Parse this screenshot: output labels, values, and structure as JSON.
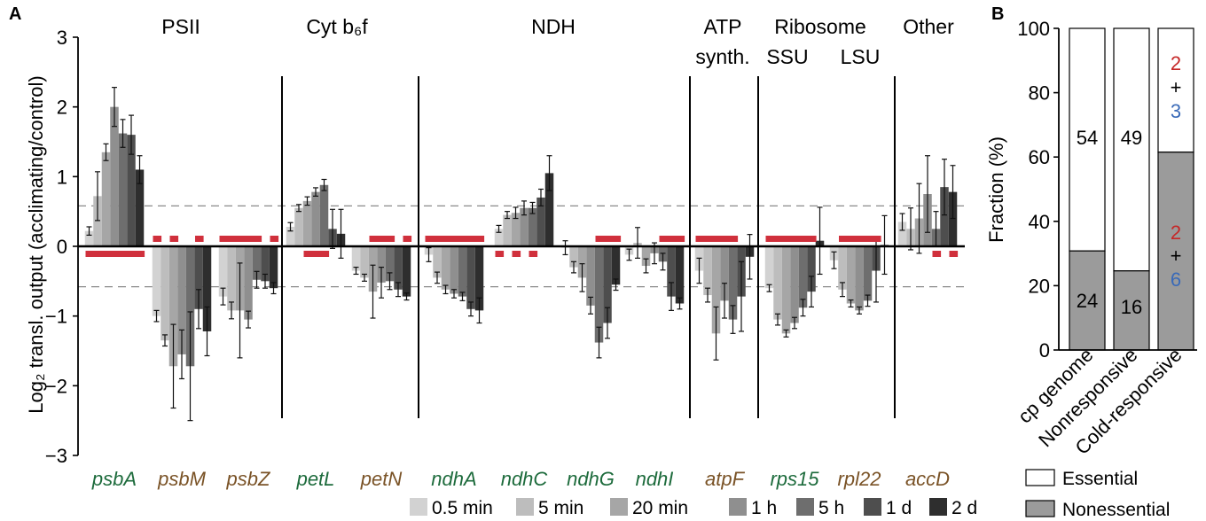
{
  "panel_a": {
    "letter": "A",
    "ylabel": "Log₂ transl. output (acclimating/control)",
    "y_ticks": [
      "3",
      "2",
      "1",
      "0",
      "−1",
      "−2",
      "−3"
    ],
    "groups": [
      {
        "label": "PSII"
      },
      {
        "label": "Cyt b₆f"
      },
      {
        "label": "NDH"
      },
      {
        "label": "ATP",
        "label2": "synth."
      },
      {
        "label": "Ribosome"
      },
      {
        "label": "SSU"
      },
      {
        "label": "LSU"
      },
      {
        "label": "Other"
      }
    ],
    "legend": [
      "0.5 min",
      "5 min",
      "20 min",
      "1 h",
      "5 h",
      "1 d",
      "2 d"
    ]
  },
  "panel_b": {
    "letter": "B",
    "ylabel": "Fraction (%)",
    "y_ticks": [
      "0",
      "20",
      "40",
      "60",
      "80",
      "100"
    ],
    "categories": [
      "cp genome",
      "Nonresponsive",
      "Cold-responsive"
    ],
    "legend": [
      "Essential",
      "Nonessential"
    ],
    "bar_labels": {
      "cp_genome_essential": "54",
      "cp_genome_nonessential": "24",
      "nonresponsive_essential": "49",
      "nonresponsive_nonessential": "16",
      "cold_essential_a": "2",
      "cold_essential_plus": "+",
      "cold_essential_b": "3",
      "cold_nonessential_a": "2",
      "cold_nonessential_plus": "+",
      "cold_nonessential_b": "6"
    }
  },
  "colors": {
    "series": [
      "#d2d2d2",
      "#bdbdbd",
      "#a6a6a6",
      "#8f8f8f",
      "#6e6e6e",
      "#4e4e4e",
      "#2e2e2e"
    ],
    "essential_gene": "#1d6b3c",
    "nonessential_gene": "#7a5327",
    "marker": "#d0303c",
    "red_number": "#c62828",
    "blue_number": "#3a6ab8",
    "nonessential_fill": "#9b9b9b"
  },
  "chart_data": [
    {
      "type": "bar",
      "xlabel": "",
      "ylabel": "Log₂ transl. output (acclimating/control)",
      "ylim": [
        -3,
        3
      ],
      "reference_lines": [
        0.58,
        -0.58
      ],
      "series_names": [
        "0.5 min",
        "5 min",
        "20 min",
        "1 h",
        "5 h",
        "1 d",
        "2 d"
      ],
      "genes": [
        {
          "name": "psbA",
          "essential": true,
          "values": [
            0.22,
            0.72,
            1.35,
            2.0,
            1.62,
            1.6,
            1.1
          ],
          "errors": [
            0.06,
            0.35,
            0.12,
            0.28,
            0.2,
            0.28,
            0.2
          ],
          "markers": {
            "down": [
              0,
              1,
              2,
              3,
              4,
              5,
              6
            ],
            "up": []
          }
        },
        {
          "name": "psbM",
          "essential": false,
          "values": [
            -1.0,
            -1.35,
            -1.72,
            -1.55,
            -1.72,
            -0.9,
            -1.22
          ],
          "errors": [
            0.08,
            0.08,
            0.6,
            0.35,
            0.78,
            0.28,
            0.35
          ],
          "markers": {
            "down": [],
            "up": [
              0,
              2,
              5
            ]
          }
        },
        {
          "name": "psbZ",
          "essential": false,
          "values": [
            -0.72,
            -0.92,
            -0.92,
            -1.05,
            -0.48,
            -0.5,
            -0.6
          ],
          "errors": [
            0.12,
            0.12,
            0.68,
            0.12,
            0.12,
            0.1,
            0.08
          ],
          "markers": {
            "down": [],
            "up": [
              0,
              1,
              2,
              3,
              4,
              6
            ]
          }
        },
        {
          "name": "petL",
          "essential": true,
          "values": [
            0.28,
            0.55,
            0.65,
            0.78,
            0.88,
            0.25,
            0.18
          ],
          "errors": [
            0.06,
            0.05,
            0.06,
            0.06,
            0.08,
            0.28,
            0.35
          ],
          "markers": {
            "down": [
              2,
              3,
              4
            ],
            "up": []
          }
        },
        {
          "name": "petN",
          "essential": false,
          "values": [
            -0.35,
            -0.45,
            -0.65,
            -0.52,
            -0.5,
            -0.62,
            -0.72
          ],
          "errors": [
            0.05,
            0.05,
            0.38,
            0.22,
            0.12,
            0.1,
            0.05
          ],
          "markers": {
            "down": [],
            "up": [
              2,
              3,
              4,
              6
            ]
          }
        },
        {
          "name": "ndhA",
          "essential": true,
          "values": [
            -0.12,
            -0.45,
            -0.62,
            -0.68,
            -0.72,
            -0.9,
            -0.92
          ],
          "errors": [
            0.1,
            0.08,
            0.06,
            0.06,
            0.06,
            0.1,
            0.18
          ],
          "markers": {
            "down": [],
            "up": [
              0,
              1,
              2,
              3,
              4,
              5,
              6
            ]
          }
        },
        {
          "name": "ndhC",
          "essential": true,
          "values": [
            0.25,
            0.45,
            0.48,
            0.55,
            0.55,
            0.7,
            1.05
          ],
          "errors": [
            0.05,
            0.05,
            0.08,
            0.1,
            0.08,
            0.12,
            0.25
          ],
          "markers": {
            "down": [
              0,
              2,
              4
            ],
            "up": []
          }
        },
        {
          "name": "ndhG",
          "essential": true,
          "values": [
            -0.02,
            -0.3,
            -0.45,
            -0.85,
            -1.38,
            -1.1,
            -0.55
          ],
          "errors": [
            0.1,
            0.08,
            0.2,
            0.12,
            0.22,
            0.22,
            0.08
          ],
          "markers": {
            "down": [],
            "up": [
              4,
              5,
              6
            ]
          }
        },
        {
          "name": "ndhI",
          "essential": true,
          "values": [
            -0.12,
            0.05,
            -0.28,
            -0.1,
            -0.22,
            -0.72,
            -0.82
          ],
          "errors": [
            0.08,
            0.22,
            0.1,
            0.15,
            0.12,
            0.2,
            0.08
          ],
          "markers": {
            "down": [],
            "up": [
              4,
              5,
              6
            ]
          }
        },
        {
          "name": "atpF",
          "essential": false,
          "values": [
            -0.35,
            -0.7,
            -1.25,
            -0.78,
            -1.05,
            -0.72,
            -0.15
          ],
          "errors": [
            0.18,
            0.1,
            0.38,
            0.25,
            0.2,
            0.5,
            0.32
          ],
          "markers": {
            "down": [],
            "up": [
              0,
              1,
              2,
              3,
              4
            ]
          }
        },
        {
          "name": "rps15",
          "essential": true,
          "values": [
            -0.6,
            -1.05,
            -1.25,
            -1.1,
            -0.88,
            -0.65,
            0.08
          ],
          "errors": [
            0.05,
            0.08,
            0.05,
            0.08,
            0.12,
            0.22,
            0.48
          ],
          "markers": {
            "down": [],
            "up": [
              0,
              1,
              2,
              3,
              4,
              5
            ]
          }
        },
        {
          "name": "rpl22",
          "essential": false,
          "values": [
            -0.2,
            -0.62,
            -0.82,
            -0.92,
            -0.78,
            -0.35,
            0.02
          ],
          "errors": [
            0.12,
            0.1,
            0.05,
            0.05,
            0.08,
            0.45,
            0.42
          ],
          "markers": {
            "down": [],
            "up": [
              1,
              2,
              3,
              4,
              5
            ]
          }
        },
        {
          "name": "accD",
          "essential": false,
          "values": [
            0.35,
            0.25,
            0.4,
            0.75,
            0.25,
            0.85,
            0.78
          ],
          "errors": [
            0.12,
            0.3,
            0.5,
            0.55,
            0.25,
            0.4,
            0.38
          ],
          "markers": {
            "down": [
              4,
              6
            ],
            "up": []
          }
        }
      ]
    },
    {
      "type": "bar",
      "stacked": true,
      "xlabel": "",
      "ylabel": "Fraction (%)",
      "ylim": [
        0,
        100
      ],
      "categories": [
        "cp genome",
        "Nonresponsive",
        "Cold-responsive"
      ],
      "series": [
        {
          "name": "Nonessential",
          "values": [
            30.8,
            24.6,
            61.5
          ]
        },
        {
          "name": "Essential",
          "values": [
            69.2,
            75.4,
            38.5
          ]
        }
      ]
    }
  ]
}
